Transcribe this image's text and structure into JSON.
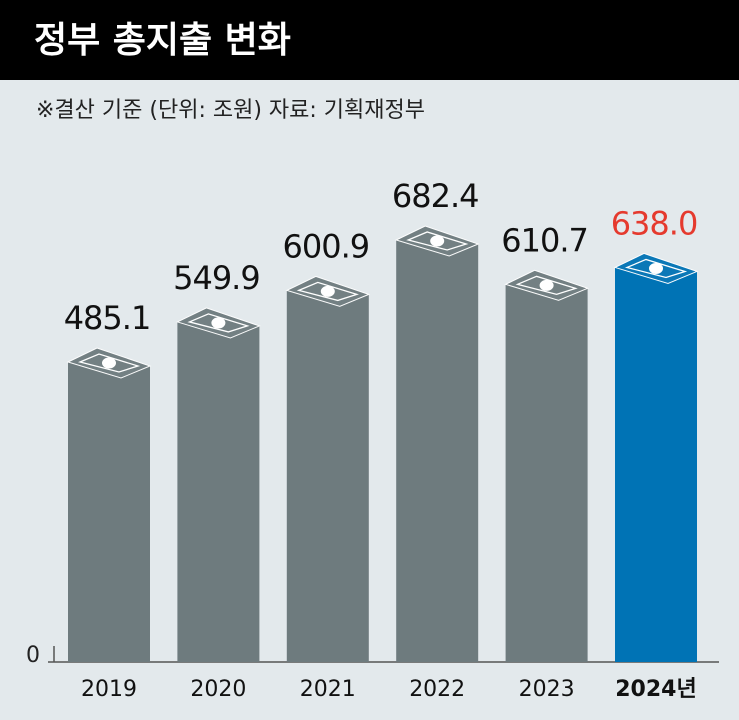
{
  "chart_data": {
    "type": "bar",
    "title": "정부 총지출 변화",
    "subtitle": "※결산 기준 (단위: 조원) 자료: 기획재정부",
    "categories": [
      "2019",
      "2020",
      "2021",
      "2022",
      "2023",
      "2024년"
    ],
    "values": [
      485.1,
      549.9,
      600.9,
      682.4,
      610.7,
      638.0
    ],
    "value_labels": [
      "485.1",
      "549.9",
      "600.9",
      "682.4",
      "610.7",
      "638.0"
    ],
    "colors": [
      "#6e7b7e",
      "#6e7b7e",
      "#6e7b7e",
      "#6e7b7e",
      "#6e7b7e",
      "#0073b5"
    ],
    "label_colors": [
      "#111111",
      "#111111",
      "#111111",
      "#111111",
      "#111111",
      "#e53a2e"
    ],
    "ylim": [
      0,
      760
    ],
    "yticks": [
      0
    ]
  }
}
